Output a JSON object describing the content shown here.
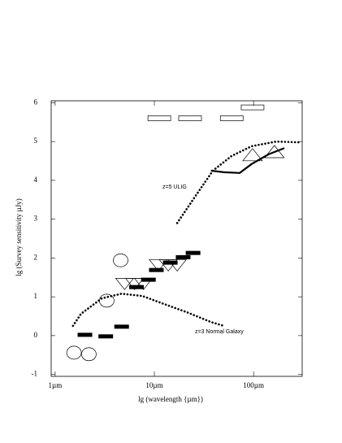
{
  "chart_data": {
    "type": "scatter",
    "x_label": "lg (wavelength {µm})",
    "y_label": "lg (Survey sensitivity µJy)",
    "xlim": [
      -0.04,
      2.49
    ],
    "xticks": [
      {
        "value": 0,
        "label": "1µm"
      },
      {
        "value": 1,
        "label": "10µm"
      },
      {
        "value": 2,
        "label": "100µm"
      }
    ],
    "ylim": [
      -1.05,
      6.05
    ],
    "yticks": [
      -1,
      0,
      1,
      2,
      3,
      4,
      5,
      6
    ],
    "annotations": [
      "z=5 ULIG",
      "z=3 Normal Galaxy"
    ],
    "series": [
      {
        "marker": "dotted-line",
        "color": "#000",
        "x": [
          0.18,
          0.26,
          0.47,
          0.67,
          0.88,
          1.08,
          1.33,
          1.57,
          1.7
        ],
        "values": [
          0.25,
          0.56,
          0.96,
          1.08,
          1.02,
          0.83,
          0.6,
          0.35,
          0.25
        ]
      },
      {
        "marker": "dotted-line",
        "color": "#000",
        "x": [
          1.23,
          1.41,
          1.59,
          1.78,
          1.98,
          2.23,
          2.46
        ],
        "values": [
          2.9,
          3.58,
          4.25,
          4.63,
          4.88,
          5.0,
          4.98
        ]
      },
      {
        "marker": "solid-line",
        "color": "#000",
        "x": [
          1.57,
          1.7,
          1.86,
          1.98,
          2.15,
          2.31
        ],
        "values": [
          4.25,
          4.21,
          4.19,
          4.42,
          4.67,
          4.83
        ]
      },
      {
        "marker": "dash",
        "color": "#000",
        "x": [
          0.3,
          0.51,
          0.67,
          0.82,
          0.94,
          1.02,
          1.16,
          1.29,
          1.39
        ],
        "values": [
          0.02,
          -0.02,
          0.23,
          1.25,
          1.44,
          1.69,
          1.88,
          2.02,
          2.13
        ]
      },
      {
        "marker": "circle",
        "color": "#000",
        "x": [
          0.19,
          0.34,
          0.52,
          0.66
        ],
        "values": [
          -0.44,
          -0.48,
          0.9,
          1.94
        ]
      },
      {
        "marker": "triangle-down",
        "color": "#000",
        "x": [
          0.7,
          0.8,
          0.89,
          1.04,
          1.14,
          1.23
        ],
        "values": [
          1.33,
          1.33,
          1.33,
          1.81,
          1.81,
          1.81
        ]
      },
      {
        "marker": "triangle-up",
        "color": "#000",
        "x": [
          1.99,
          2.21
        ],
        "values": [
          4.63,
          4.71
        ]
      },
      {
        "marker": "open-rect",
        "color": "#000",
        "x": [
          1.05,
          1.36,
          1.78,
          1.99
        ],
        "values": [
          5.6,
          5.6,
          5.6,
          5.88
        ]
      }
    ]
  }
}
